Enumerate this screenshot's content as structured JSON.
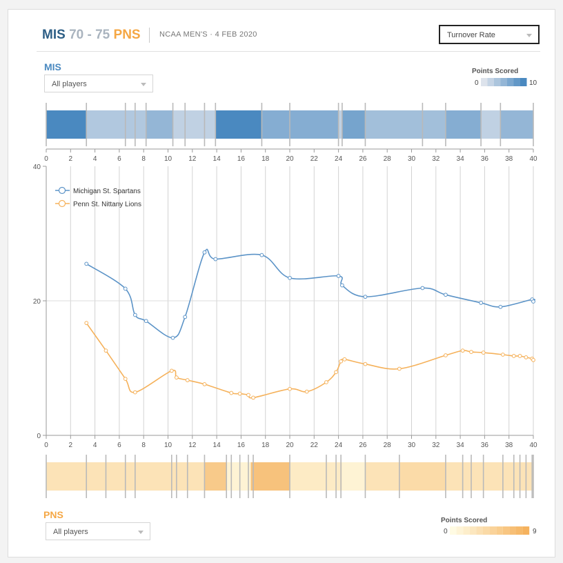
{
  "header": {
    "home_abbr": "MIS",
    "home_score": "70",
    "separator": "-",
    "away_score": "75",
    "away_abbr": "PNS",
    "meta": "NCAA MEN'S · 4 FEB 2020",
    "metric_select": "Turnover Rate"
  },
  "home": {
    "label": "MIS",
    "player_filter": "All players",
    "legend_title": "Points Scored",
    "legend_min": "0",
    "legend_max": "10",
    "color": "#4a89c0"
  },
  "away": {
    "label": "PNS",
    "player_filter": "All players",
    "legend_title": "Points Scored",
    "legend_min": "0",
    "legend_max": "9",
    "color": "#f5a744"
  },
  "chart_data": [
    {
      "type": "line",
      "title": "Turnover Rate",
      "xlim": [
        0,
        40
      ],
      "ylim": [
        0,
        40
      ],
      "xticks": [
        0,
        2,
        4,
        6,
        8,
        10,
        12,
        14,
        16,
        18,
        20,
        22,
        24,
        26,
        28,
        30,
        32,
        34,
        36,
        38,
        40
      ],
      "yticks": [
        0,
        20,
        40
      ],
      "substitution_lines": [
        2,
        4,
        6,
        8,
        10,
        12,
        14,
        16,
        18,
        20,
        22,
        24,
        26,
        28,
        30,
        32,
        34,
        36,
        38,
        40
      ],
      "series": [
        {
          "name": "Michigan St. Spartans",
          "color": "#5b93c7",
          "x": [
            3.3,
            6.5,
            7.3,
            8.2,
            10.4,
            11.4,
            13.0,
            13.9,
            17.7,
            20.0,
            24.0,
            24.3,
            26.2,
            30.9,
            32.8,
            35.7,
            37.3,
            39.9,
            40.0
          ],
          "y": [
            25.5,
            21.8,
            17.9,
            17.0,
            14.5,
            17.6,
            27.2,
            26.2,
            26.8,
            23.4,
            23.7,
            22.3,
            20.6,
            21.9,
            20.9,
            19.7,
            19.1,
            20.2,
            19.9
          ]
        },
        {
          "name": "Penn St. Nittany Lions",
          "color": "#f5b15a",
          "x": [
            3.3,
            4.9,
            6.5,
            7.3,
            10.3,
            10.7,
            11.6,
            13.0,
            15.2,
            15.9,
            16.6,
            17.0,
            20.0,
            21.4,
            23.0,
            23.8,
            24.2,
            24.5,
            26.2,
            29.0,
            32.8,
            34.2,
            34.9,
            35.9,
            37.5,
            38.4,
            38.9,
            39.4,
            39.9,
            40.0
          ],
          "y": [
            16.7,
            12.6,
            8.4,
            6.4,
            9.6,
            8.6,
            8.2,
            7.6,
            6.3,
            6.2,
            6.0,
            5.6,
            6.9,
            6.5,
            7.9,
            9.4,
            11.0,
            11.3,
            10.6,
            9.9,
            11.9,
            12.6,
            12.4,
            12.3,
            12.0,
            11.8,
            11.8,
            11.6,
            11.4,
            11.2
          ]
        }
      ],
      "legend": "top-left"
    },
    {
      "type": "heatmap",
      "title": "MIS Points Scored by lineup",
      "team": "MIS",
      "value_range": [
        0,
        10
      ],
      "segments": [
        {
          "start": 0.0,
          "end": 3.3,
          "points": 10
        },
        {
          "start": 3.3,
          "end": 8.2,
          "points": 3
        },
        {
          "start": 8.2,
          "end": 10.4,
          "points": 5
        },
        {
          "start": 10.4,
          "end": 13.9,
          "points": 2
        },
        {
          "start": 13.9,
          "end": 17.7,
          "points": 10
        },
        {
          "start": 17.7,
          "end": 24.0,
          "points": 6
        },
        {
          "start": 24.0,
          "end": 24.3,
          "points": 2
        },
        {
          "start": 24.3,
          "end": 26.2,
          "points": 7
        },
        {
          "start": 26.2,
          "end": 32.8,
          "points": 4
        },
        {
          "start": 32.8,
          "end": 35.7,
          "points": 6
        },
        {
          "start": 35.7,
          "end": 37.3,
          "points": 2
        },
        {
          "start": 37.3,
          "end": 40.0,
          "points": 5
        }
      ],
      "substitution_times": [
        0,
        3.3,
        6.5,
        7.3,
        8.2,
        10.4,
        11.4,
        13.0,
        13.9,
        17.7,
        20.0,
        24.0,
        24.3,
        26.2,
        30.9,
        32.8,
        35.7,
        37.3,
        40.0
      ]
    },
    {
      "type": "heatmap",
      "title": "PNS Points Scored by lineup",
      "team": "PNS",
      "value_range": [
        0,
        9
      ],
      "segments": [
        {
          "start": 0.0,
          "end": 13.0,
          "points": 3
        },
        {
          "start": 13.0,
          "end": 14.8,
          "points": 6
        },
        {
          "start": 14.8,
          "end": 16.8,
          "points": 1
        },
        {
          "start": 16.8,
          "end": 20.0,
          "points": 7
        },
        {
          "start": 20.0,
          "end": 24.3,
          "points": 2
        },
        {
          "start": 24.3,
          "end": 26.2,
          "points": 1
        },
        {
          "start": 26.2,
          "end": 29.0,
          "points": 3
        },
        {
          "start": 29.0,
          "end": 32.8,
          "points": 4
        },
        {
          "start": 32.8,
          "end": 40.0,
          "points": 3
        }
      ],
      "substitution_times": [
        0,
        3.3,
        4.9,
        6.5,
        7.3,
        10.3,
        10.7,
        11.6,
        13.0,
        14.8,
        15.2,
        15.9,
        16.6,
        17.0,
        20.0,
        23.0,
        23.8,
        24.2,
        26.2,
        29.0,
        32.8,
        34.2,
        34.9,
        35.9,
        37.5,
        38.4,
        38.9,
        39.4,
        39.9,
        40.0
      ]
    }
  ]
}
